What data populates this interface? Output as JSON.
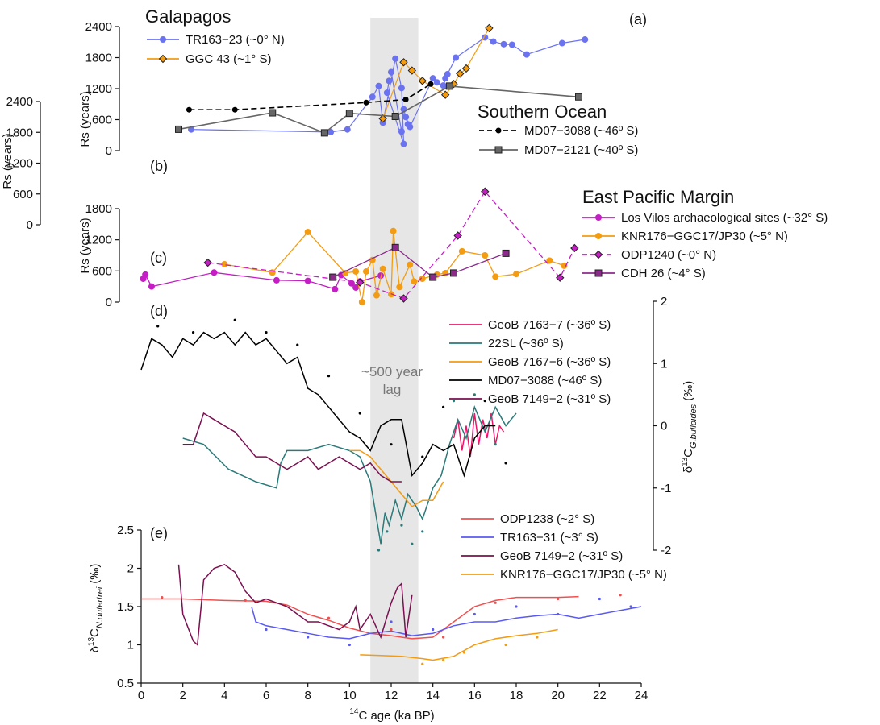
{
  "chart_data": [
    {
      "panel": "(a)",
      "type": "line",
      "group_title": "Galapagos",
      "ylabel": "Rs (years)",
      "ylim": [
        0,
        2400
      ],
      "yticks": [
        0,
        600,
        1200,
        1800,
        2400
      ],
      "yaxis": "left",
      "series": [
        {
          "name": "TR163−23 (~0° N)",
          "color": "#6b72f0",
          "marker": "circle",
          "x": [
            2.4,
            9.1,
            9.9,
            11.1,
            11.4,
            11.6,
            12.2,
            12.5,
            12.6,
            11.8,
            11.9,
            12.0,
            12.5,
            12.6,
            12.8,
            12.7,
            12.9,
            14.0,
            14.2,
            14.5,
            14.7,
            14.6,
            15.1,
            16.5,
            16.9,
            17.4,
            17.8,
            18.5,
            20.2,
            21.3
          ],
          "y": [
            410,
            360,
            410,
            1040,
            1250,
            540,
            1780,
            1210,
            130,
            1120,
            1350,
            1520,
            370,
            800,
            510,
            650,
            460,
            1400,
            1320,
            1260,
            1480,
            1400,
            1800,
            2190,
            2110,
            2060,
            2050,
            1860,
            2080,
            2150
          ]
        },
        {
          "name": "GGC 43 (~1° S)",
          "color": "#f39c12",
          "marker": "diamond",
          "x": [
            11.6,
            12.6,
            13.0,
            13.5,
            14.6,
            15.0,
            15.3,
            15.6,
            16.7
          ],
          "y": [
            620,
            1710,
            1550,
            1350,
            1080,
            1290,
            1490,
            1590,
            2370
          ]
        }
      ]
    },
    {
      "panel": "(b)",
      "type": "line",
      "group_title": "Southern Ocean",
      "ylabel": "Rs (years)",
      "ylim": [
        0,
        2400
      ],
      "yticks": [
        0,
        600,
        1200,
        1800,
        2400
      ],
      "yaxis": "left",
      "series": [
        {
          "name": "MD07−3088 (~46º S)",
          "color": "#000000",
          "marker": "dot",
          "dashed": true,
          "x": [
            2.3,
            4.5,
            10.8,
            12.7,
            13.9
          ],
          "y": [
            2240,
            2240,
            2380,
            2440,
            2740
          ]
        },
        {
          "name": "MD07−2121 (~40º S)",
          "color": "#666666",
          "marker": "square",
          "x": [
            1.8,
            6.3,
            8.8,
            10.0,
            12.2,
            14.8,
            21.0
          ],
          "y": [
            1860,
            2180,
            1790,
            2170,
            2110,
            2700,
            2490
          ]
        }
      ]
    },
    {
      "panel": "(c)",
      "type": "line",
      "group_title": "East Pacific Margin",
      "ylabel": "Rs (years)",
      "ylim": [
        0,
        1800
      ],
      "yticks": [
        0,
        600,
        1200,
        1800
      ],
      "yaxis": "left",
      "series": [
        {
          "name": "Los Vilos archaeological sites (~32° S)",
          "color": "#c41ec4",
          "marker": "circle",
          "x": [
            0.1,
            0.2,
            0.5,
            3.5,
            6.5,
            8.0,
            9.3,
            9.6,
            10.1,
            10.3,
            10.5,
            11.5
          ],
          "y": [
            450,
            530,
            300,
            570,
            420,
            410,
            250,
            520,
            360,
            280,
            400,
            510
          ]
        },
        {
          "name": "KNR176−GGC17/JP30 (~5° N)",
          "color": "#f39c12",
          "marker": "circle",
          "x": [
            4.0,
            6.3,
            8.0,
            9.8,
            10.3,
            10.6,
            10.8,
            11.1,
            11.3,
            11.6,
            12.0,
            12.1,
            12.4,
            12.9,
            13.1,
            13.5,
            14.2,
            14.6,
            15.4,
            16.5,
            17.0,
            18.0,
            19.6,
            20.3
          ],
          "y": [
            730,
            570,
            1350,
            560,
            590,
            0,
            590,
            810,
            130,
            640,
            150,
            1370,
            290,
            720,
            400,
            450,
            530,
            560,
            980,
            900,
            490,
            540,
            800,
            700
          ]
        },
        {
          "name": "ODP1240 (~0° N)",
          "color": "#c41ec4",
          "marker": "diamond",
          "dashed": true,
          "x": [
            3.2,
            10.5,
            12.6,
            15.2,
            16.5,
            20.1,
            20.8
          ],
          "y": [
            760,
            380,
            70,
            1280,
            2130,
            470,
            1040
          ]
        },
        {
          "name": "CDH 26 (~4° S)",
          "color": "#8b2a8b",
          "marker": "square",
          "x": [
            9.2,
            12.2,
            14.0,
            15.0,
            17.5
          ],
          "y": [
            480,
            1050,
            480,
            560,
            940
          ]
        }
      ]
    },
    {
      "panel": "(d)",
      "type": "line",
      "ylabel": "δ¹³C G.bulloides (‰)",
      "ylim": [
        -2,
        2
      ],
      "yticks": [
        -2,
        -1,
        0,
        1,
        2
      ],
      "yaxis": "right",
      "annotation": "~500 year lag",
      "series": [
        {
          "name": "GeoB 7163−7 (~36º S)",
          "color": "#e8196b",
          "x": [
            15.0,
            15.2,
            15.4,
            15.6,
            15.8,
            16.0,
            16.2,
            16.4,
            16.6,
            16.8,
            17.0,
            17.2,
            17.4
          ],
          "y": [
            -0.2,
            0.1,
            -0.4,
            0.0,
            -0.5,
            0.2,
            -0.3,
            0.1,
            -0.2,
            0.2,
            -0.3,
            0.0,
            -0.1
          ]
        },
        {
          "name": "22SL (~36º S)",
          "color": "#2a7a7a",
          "x": [
            2.0,
            3.0,
            4.2,
            5.5,
            6.5,
            6.7,
            7.0,
            8.0,
            9.0,
            10.0,
            10.5,
            11.0,
            11.3,
            11.5,
            11.7,
            11.9,
            12.2,
            12.5,
            12.8,
            13.2,
            13.5,
            14.0,
            14.4,
            14.8,
            15.2,
            15.6,
            16.0,
            16.5,
            17.0,
            17.5,
            18.0
          ],
          "y": [
            -0.2,
            -0.3,
            -0.7,
            -0.9,
            -1.0,
            -0.6,
            -0.4,
            -0.4,
            -0.3,
            -0.4,
            -0.5,
            -0.9,
            -1.5,
            -1.9,
            -1.4,
            -1.6,
            -1.2,
            -1.5,
            -1.1,
            -1.3,
            -1.5,
            -1.0,
            -0.8,
            -0.3,
            0.1,
            -0.2,
            0.3,
            -0.1,
            0.3,
            0.0,
            0.2
          ]
        },
        {
          "name": "GeoB 7167−6 (~36º S)",
          "color": "#f39c12",
          "x": [
            10.0,
            10.5,
            11.0,
            11.5,
            12.0,
            12.5,
            13.0,
            13.5,
            14.0,
            14.5
          ],
          "y": [
            -0.4,
            -0.4,
            -0.5,
            -0.7,
            -0.9,
            -1.1,
            -1.3,
            -1.2,
            -1.2,
            -0.9
          ]
        },
        {
          "name": "MD07−3088 (~46º S)",
          "color": "#000000",
          "x": [
            0.0,
            0.5,
            1.0,
            1.5,
            2.0,
            2.5,
            3.0,
            3.5,
            4.0,
            4.5,
            5.0,
            5.5,
            6.0,
            6.5,
            7.0,
            7.5,
            8.0,
            8.5,
            9.0,
            9.5,
            10.0,
            10.5,
            11.0,
            11.5,
            12.0,
            12.5,
            13.0,
            13.5,
            14.0,
            14.5,
            15.0,
            15.5,
            16.0,
            16.5,
            17.0
          ],
          "y": [
            0.9,
            1.4,
            1.3,
            1.1,
            1.4,
            1.3,
            1.5,
            1.4,
            1.5,
            1.3,
            1.5,
            1.3,
            1.4,
            1.2,
            1.0,
            1.1,
            0.6,
            0.5,
            0.3,
            0.1,
            -0.1,
            -0.2,
            -0.4,
            0.0,
            0.1,
            0.1,
            -0.8,
            -0.6,
            -0.3,
            -0.4,
            -0.3,
            -0.8,
            -0.2,
            0.0,
            0.0
          ]
        },
        {
          "name": "GeoB 7149−2 (~31º S)",
          "color": "#7b1050",
          "x": [
            2.0,
            2.5,
            3.0,
            3.5,
            4.0,
            4.5,
            5.0,
            5.5,
            6.0,
            6.5,
            7.0,
            7.5,
            8.0,
            8.5,
            9.0,
            9.5,
            10.0,
            10.5,
            11.0,
            11.5,
            12.0,
            12.5
          ],
          "y": [
            -0.3,
            -0.3,
            0.2,
            0.1,
            0.0,
            -0.1,
            -0.3,
            -0.5,
            -0.5,
            -0.6,
            -0.7,
            -0.6,
            -0.5,
            -0.7,
            -0.6,
            -0.5,
            -0.6,
            -0.7,
            -0.6,
            -0.8,
            -0.9,
            -0.9
          ]
        }
      ]
    },
    {
      "panel": "(e)",
      "type": "line",
      "xlabel": "14C age (ka BP)",
      "xlim": [
        0,
        24
      ],
      "xticks": [
        0,
        2,
        4,
        6,
        8,
        10,
        12,
        14,
        16,
        18,
        20,
        22,
        24
      ],
      "ylabel": "δ¹³C N.dutertrei (‰)",
      "ylim": [
        0.5,
        2.5
      ],
      "yticks": [
        0.5,
        1,
        1.5,
        2,
        2.5
      ],
      "yaxis": "left",
      "series": [
        {
          "name": "ODP1238 (~2° S)",
          "color": "#f05050",
          "x": [
            0.0,
            2.0,
            4.0,
            6.0,
            7.0,
            8.0,
            9.0,
            10.0,
            11.0,
            12.0,
            13.0,
            14.0,
            15.0,
            16.0,
            17.0,
            18.0,
            20.0,
            21.0
          ],
          "y": [
            1.6,
            1.6,
            1.58,
            1.57,
            1.52,
            1.4,
            1.32,
            1.22,
            1.15,
            1.12,
            1.08,
            1.1,
            1.3,
            1.5,
            1.58,
            1.62,
            1.62,
            1.63
          ]
        },
        {
          "name": "TR163−31 (~3° S)",
          "color": "#5a5af0",
          "x": [
            5.3,
            5.5,
            6.0,
            7.0,
            8.0,
            9.0,
            10.0,
            11.0,
            12.0,
            13.0,
            14.0,
            15.0,
            16.0,
            17.0,
            18.0,
            19.0,
            20.0,
            21.0,
            22.0,
            23.0,
            24.0
          ],
          "y": [
            1.5,
            1.3,
            1.25,
            1.2,
            1.15,
            1.1,
            1.08,
            1.15,
            1.18,
            1.12,
            1.15,
            1.25,
            1.3,
            1.3,
            1.35,
            1.38,
            1.4,
            1.35,
            1.4,
            1.45,
            1.5
          ]
        },
        {
          "name": "GeoB 7149−2 (~31º S)",
          "color": "#7b1050",
          "x": [
            1.8,
            2.0,
            2.5,
            2.7,
            3.0,
            3.5,
            4.0,
            4.5,
            5.0,
            5.5,
            6.0,
            6.5,
            7.0,
            7.5,
            8.0,
            8.5,
            9.0,
            9.5,
            10.0,
            10.3,
            10.5,
            11.0,
            11.5,
            12.0,
            12.3,
            12.5,
            12.7,
            13.0
          ],
          "y": [
            2.05,
            1.4,
            1.05,
            1.0,
            1.85,
            2.0,
            2.05,
            1.95,
            1.7,
            1.55,
            1.6,
            1.55,
            1.5,
            1.4,
            1.3,
            1.3,
            1.25,
            1.2,
            1.3,
            1.5,
            1.2,
            1.4,
            1.1,
            1.55,
            1.75,
            1.8,
            1.1,
            1.65
          ]
        },
        {
          "name": "KNR176−GGC17/JP30 (~5° N)",
          "color": "#f39c12",
          "x": [
            10.5,
            11.5,
            12.5,
            13.5,
            14.0,
            15.0,
            16.0,
            17.0,
            18.0,
            19.0,
            20.0
          ],
          "y": [
            0.87,
            0.86,
            0.85,
            0.82,
            0.8,
            0.85,
            1.0,
            1.08,
            1.12,
            1.15,
            1.2
          ]
        }
      ]
    }
  ],
  "lag_band": {
    "x": [
      11.0,
      13.3
    ],
    "color": "#e6e6e6"
  },
  "scatter_points": {
    "d_black": [
      [
        0.8,
        1.6
      ],
      [
        2.5,
        1.5
      ],
      [
        4.5,
        1.7
      ],
      [
        6.0,
        1.5
      ],
      [
        7.5,
        1.3
      ],
      [
        9.0,
        0.8
      ],
      [
        10.5,
        0.2
      ],
      [
        12.0,
        -0.3
      ],
      [
        13.5,
        -0.5
      ],
      [
        14.5,
        0.3
      ],
      [
        16.5,
        0.4
      ],
      [
        17.5,
        -0.6
      ]
    ],
    "d_teal": [
      [
        11.4,
        -2.0
      ],
      [
        11.8,
        -1.7
      ],
      [
        12.5,
        -1.6
      ],
      [
        13.0,
        -1.9
      ],
      [
        13.5,
        -1.7
      ],
      [
        15.0,
        0.4
      ],
      [
        16.0,
        0.5
      ],
      [
        17.0,
        -0.3
      ]
    ],
    "e_blue": [
      [
        6.0,
        1.2
      ],
      [
        8.0,
        1.1
      ],
      [
        10.0,
        1.0
      ],
      [
        12.0,
        1.3
      ],
      [
        14.0,
        1.2
      ],
      [
        16.0,
        1.4
      ],
      [
        18.0,
        1.5
      ],
      [
        20.0,
        1.4
      ],
      [
        22.0,
        1.6
      ],
      [
        23.5,
        1.5
      ]
    ],
    "e_orange": [
      [
        13.5,
        0.75
      ],
      [
        14.5,
        0.8
      ],
      [
        15.5,
        0.9
      ],
      [
        17.5,
        1.0
      ],
      [
        19.0,
        1.1
      ]
    ],
    "e_red": [
      [
        1.0,
        1.62
      ],
      [
        5.0,
        1.58
      ],
      [
        9.0,
        1.35
      ],
      [
        12.0,
        1.2
      ],
      [
        14.5,
        1.1
      ],
      [
        17.0,
        1.55
      ],
      [
        20.0,
        1.6
      ],
      [
        23.0,
        1.65
      ]
    ]
  },
  "labels": {
    "a_title": "Galapagos",
    "b_title": "Southern Ocean",
    "c_title": "East Pacific Margin",
    "pa": "(a)",
    "pb": "(b)",
    "pc": "(c)",
    "pd": "(d)",
    "pe": "(e)",
    "lag_line1": "~500 year",
    "lag_line2": "lag",
    "xlabel_main": "age (ka BP)",
    "xlabel_sup": "14",
    "xlabel_c": "C",
    "rs": "Rs (years)",
    "d_ylab_main": "δ",
    "d_ylab_sup": "13",
    "d_ylab_c": "C",
    "d_ylab_sub": "G.bulloides",
    "d_ylab_unit": " (‰)",
    "e_ylab_main": "δ",
    "e_ylab_sup": "13",
    "e_ylab_c": "C",
    "e_ylab_sub": "N.dutertrei",
    "e_ylab_unit": " (‰)"
  }
}
